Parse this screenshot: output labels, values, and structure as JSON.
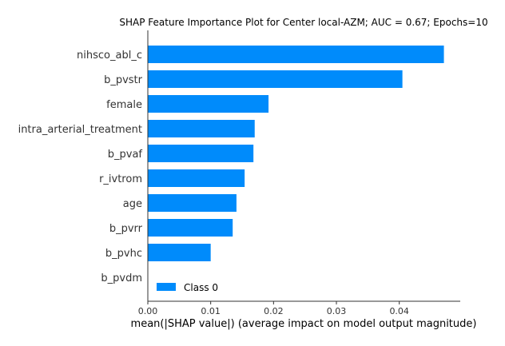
{
  "chart_data": {
    "type": "bar",
    "orientation": "horizontal",
    "title": "SHAP Feature Importance Plot for Center local-AZM; AUC = 0.67; Epochs=10",
    "xlabel": "mean(|SHAP value|) (average impact on model output magnitude)",
    "ylabel": "",
    "categories": [
      "nihsco_abl_c",
      "b_pvstr",
      "female",
      "intra_arterial_treatment",
      "b_pvaf",
      "r_ivtrom",
      "age",
      "b_pvrr",
      "b_pvhc",
      "b_pvdm"
    ],
    "series": [
      {
        "name": "Class 0",
        "color": "#008bfb",
        "values": [
          0.0471,
          0.0405,
          0.0192,
          0.017,
          0.0168,
          0.0154,
          0.0141,
          0.0135,
          0.01,
          0.0
        ]
      }
    ],
    "xlim": [
      0,
      0.0497
    ],
    "xticks": [
      0.0,
      0.01,
      0.02,
      0.03,
      0.04
    ],
    "xtick_labels": [
      "0.00",
      "0.01",
      "0.02",
      "0.03",
      "0.04"
    ],
    "grid": false,
    "legend": "lower-left"
  }
}
